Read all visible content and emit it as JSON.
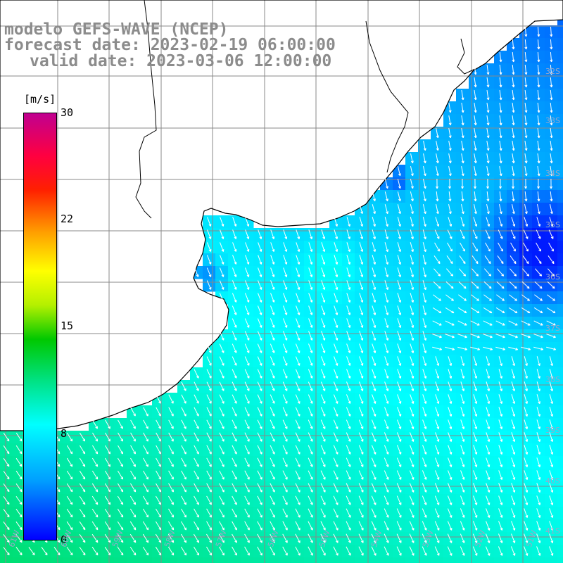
{
  "header": {
    "model_line": "modelo GEFS-WAVE (NCEP)",
    "forecast_line": "forecast date: 2023-02-19 06:00:00",
    "valid_line": "valid date: 2023-03-06 12:00:00"
  },
  "colorbar": {
    "unit": "[m/s]",
    "ticks": [
      {
        "value": 30,
        "label": "30"
      },
      {
        "value": 22,
        "label": "22"
      },
      {
        "value": 15,
        "label": "15"
      },
      {
        "value": 8,
        "label": "8"
      },
      {
        "value": 0,
        "label": "0"
      }
    ],
    "colors": [
      "#0000ff",
      "#00a0ff",
      "#00ffff",
      "#00e07a",
      "#00c800",
      "#b4f000",
      "#ffff00",
      "#ffa000",
      "#ff2000",
      "#ff0040",
      "#c00090"
    ]
  },
  "map": {
    "region": "Rio de la Plata and South-West Atlantic",
    "latitude_labels": [
      "32S",
      "33S",
      "34S",
      "35S",
      "36S",
      "37S",
      "38S",
      "39S",
      "40S",
      "41S"
    ],
    "longitude_labels": [
      "61W",
      "60W",
      "59W",
      "58W",
      "57W",
      "56W",
      "55W",
      "54W",
      "53W",
      "52W",
      "51W"
    ],
    "lat_range_deg": [
      -41.5,
      -30.8
    ],
    "lon_range_deg": [
      -61.8,
      -50.4
    ],
    "land_color": "#ffffff",
    "coast_color": "#000000",
    "grid_color": "#888888",
    "arrow_color": "#ffffff",
    "wind_field_note": "Predominantly southward/south-eastward winds around 4–9 m/s; stronger (cyan-green, ~8–10 m/s) toward the south-west, weaker (blue, ~0–3 m/s) near the Uruguay coast and offshore east."
  }
}
